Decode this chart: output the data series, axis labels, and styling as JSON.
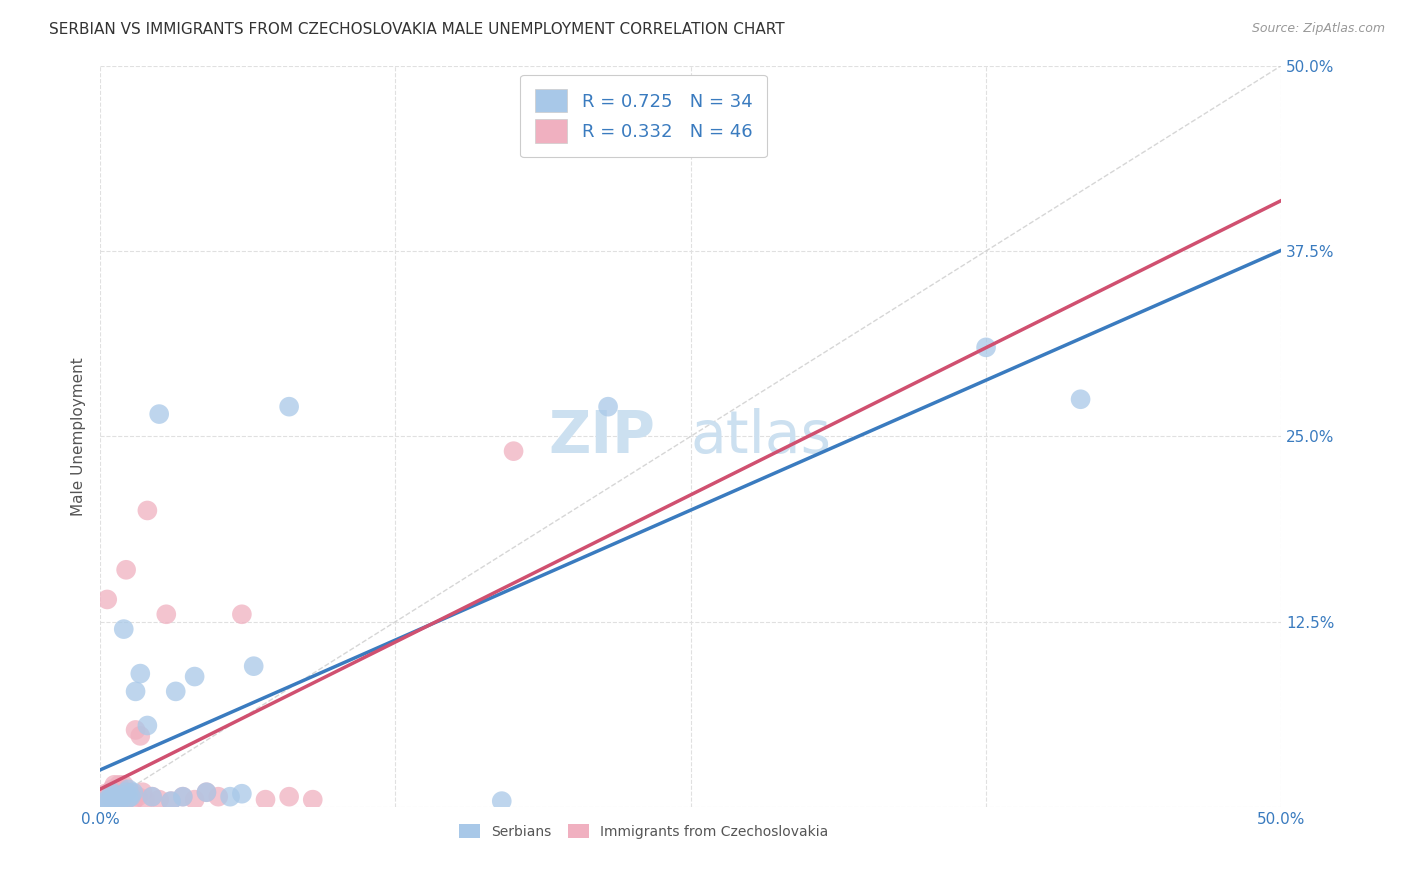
{
  "title": "SERBIAN VS IMMIGRANTS FROM CZECHOSLOVAKIA MALE UNEMPLOYMENT CORRELATION CHART",
  "source": "Source: ZipAtlas.com",
  "ylabel": "Male Unemployment",
  "watermark": "ZIPatlas",
  "xlim": [
    0.0,
    0.5
  ],
  "ylim": [
    0.0,
    0.5
  ],
  "xticks": [
    0.0,
    0.125,
    0.25,
    0.375,
    0.5
  ],
  "yticks": [
    0.0,
    0.125,
    0.25,
    0.375,
    0.5
  ],
  "xticklabels": [
    "0.0%",
    "",
    "",
    "",
    "50.0%"
  ],
  "yticklabels": [
    "",
    "12.5%",
    "25.0%",
    "37.5%",
    "50.0%"
  ],
  "grid_color": "#e0e0e0",
  "background_color": "#ffffff",
  "series1_color": "#a8c8e8",
  "series1_line_color": "#3a7bbf",
  "series1_label": "Serbians",
  "series1_R": 0.725,
  "series1_N": 34,
  "series1_x": [
    0.002,
    0.003,
    0.004,
    0.005,
    0.005,
    0.006,
    0.007,
    0.008,
    0.009,
    0.01,
    0.01,
    0.011,
    0.012,
    0.012,
    0.013,
    0.014,
    0.015,
    0.017,
    0.02,
    0.022,
    0.025,
    0.03,
    0.032,
    0.035,
    0.04,
    0.045,
    0.055,
    0.06,
    0.065,
    0.08,
    0.17,
    0.215,
    0.375,
    0.415
  ],
  "series1_y": [
    0.003,
    0.005,
    0.003,
    0.006,
    0.01,
    0.008,
    0.004,
    0.007,
    0.005,
    0.008,
    0.12,
    0.01,
    0.006,
    0.012,
    0.007,
    0.01,
    0.078,
    0.09,
    0.055,
    0.007,
    0.265,
    0.004,
    0.078,
    0.007,
    0.088,
    0.01,
    0.007,
    0.009,
    0.095,
    0.27,
    0.004,
    0.27,
    0.31,
    0.275
  ],
  "series2_color": "#f0b0c0",
  "series2_line_color": "#d05070",
  "series2_label": "Immigrants from Czechoslovakia",
  "series2_R": 0.332,
  "series2_N": 46,
  "series2_x": [
    0.001,
    0.002,
    0.002,
    0.003,
    0.003,
    0.004,
    0.004,
    0.005,
    0.005,
    0.006,
    0.006,
    0.006,
    0.007,
    0.007,
    0.007,
    0.008,
    0.008,
    0.009,
    0.009,
    0.01,
    0.01,
    0.01,
    0.011,
    0.011,
    0.012,
    0.013,
    0.014,
    0.015,
    0.016,
    0.017,
    0.018,
    0.019,
    0.02,
    0.022,
    0.025,
    0.028,
    0.03,
    0.035,
    0.04,
    0.045,
    0.05,
    0.06,
    0.07,
    0.08,
    0.09,
    0.175
  ],
  "series2_y": [
    0.005,
    0.003,
    0.009,
    0.008,
    0.14,
    0.004,
    0.01,
    0.003,
    0.012,
    0.005,
    0.01,
    0.015,
    0.004,
    0.008,
    0.012,
    0.005,
    0.015,
    0.007,
    0.012,
    0.003,
    0.009,
    0.015,
    0.16,
    0.007,
    0.008,
    0.01,
    0.004,
    0.052,
    0.007,
    0.048,
    0.01,
    0.005,
    0.2,
    0.007,
    0.005,
    0.13,
    0.004,
    0.007,
    0.005,
    0.01,
    0.007,
    0.13,
    0.005,
    0.007,
    0.005,
    0.24
  ],
  "ref_line_x": [
    0.0,
    0.5
  ],
  "ref_line_y": [
    0.0,
    0.5
  ],
  "legend_text_color": "#3a7bbf",
  "title_fontsize": 11,
  "axis_label_fontsize": 11,
  "tick_fontsize": 11,
  "legend_fontsize": 13,
  "watermark_fontsize": 42,
  "watermark_color": "#cce0f0",
  "source_fontsize": 9
}
